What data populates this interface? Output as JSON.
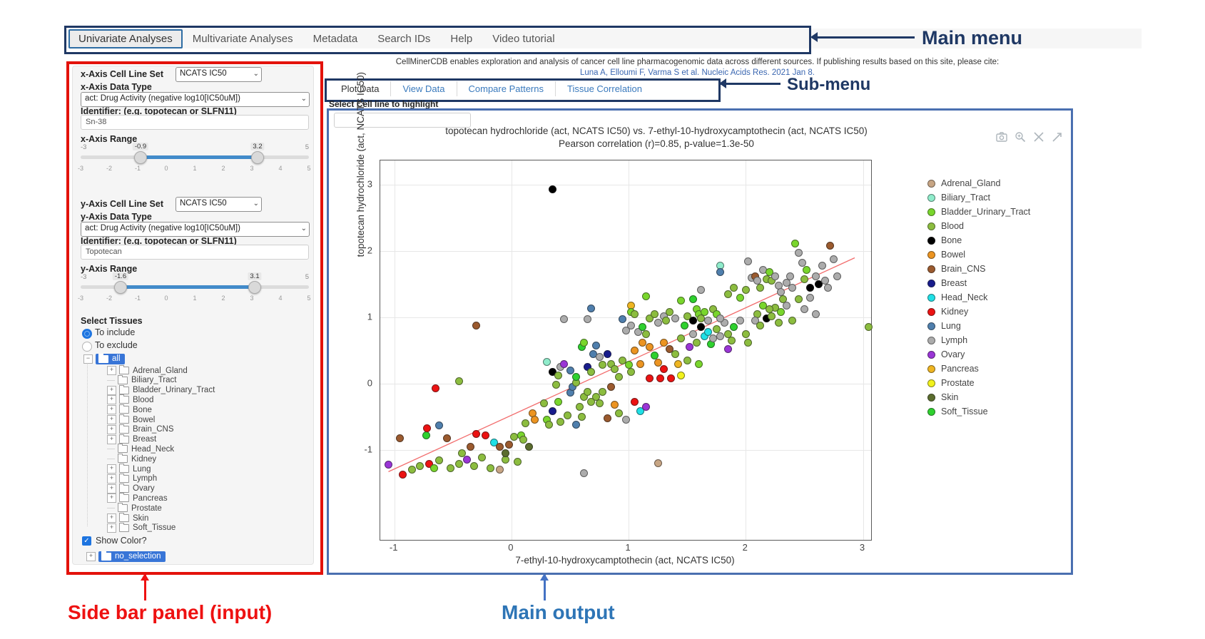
{
  "annotations": {
    "main_menu": "Main menu",
    "sub_menu": "Sub-menu",
    "sidebar": "Side bar panel (input)",
    "main_output": "Main output"
  },
  "main_menu": {
    "items": [
      {
        "label": "Univariate Analyses",
        "active": true
      },
      {
        "label": "Multivariate Analyses",
        "active": false
      },
      {
        "label": "Metadata",
        "active": false
      },
      {
        "label": "Search IDs",
        "active": false
      },
      {
        "label": "Help",
        "active": false
      },
      {
        "label": "Video tutorial",
        "active": false
      }
    ]
  },
  "citation": {
    "line1": "CellMinerCDB enables exploration and analysis of cancer cell line pharmacogenomic data across different sources. If publishing results based on this site, please cite:",
    "line2": "Luna A, Elloumi F, Varma S et al. Nucleic Acids Res. 2021 Jan 8."
  },
  "sub_menu": {
    "items": [
      {
        "label": "Plot Data",
        "active": true
      },
      {
        "label": "View Data",
        "active": false
      },
      {
        "label": "Compare Patterns",
        "active": false
      },
      {
        "label": "Tissue Correlation",
        "active": false
      }
    ]
  },
  "highlight": {
    "label": "Select Cell line to highlight",
    "value": "",
    "placeholder": ""
  },
  "sidebar": {
    "x_cell_line_set_label": "x-Axis Cell Line Set",
    "x_cell_line_set_value": "NCATS IC50",
    "x_data_type_label": "x-Axis Data Type",
    "x_data_type_value": "act: Drug Activity (negative log10[IC50uM])",
    "x_identifier_label": "Identifier: (e.g. topotecan or SLFN11)",
    "x_identifier_value": "Sn-38",
    "x_range": {
      "label": "x-Axis Range",
      "min": -3,
      "max": 5,
      "from": -0.9,
      "to": 3.2,
      "scale": [
        -3,
        -2,
        -1,
        0,
        1,
        2,
        3,
        4,
        5
      ]
    },
    "y_cell_line_set_label": "y-Axis Cell Line Set",
    "y_cell_line_set_value": "NCATS IC50",
    "y_data_type_label": "y-Axis Data Type",
    "y_data_type_value": "act: Drug Activity (negative log10[IC50uM])",
    "y_identifier_label": "Identifier: (e.g. topotecan or SLFN11)",
    "y_identifier_value": "Topotecan",
    "y_range": {
      "label": "y-Axis Range",
      "min": -3,
      "max": 5,
      "from": -1.6,
      "to": 3.1,
      "scale": [
        -3,
        -2,
        -1,
        0,
        1,
        2,
        3,
        4,
        5
      ]
    },
    "select_tissues_label": "Select Tissues",
    "include_option": "To include",
    "exclude_option": "To exclude",
    "include_selected": true,
    "tissue_tree": {
      "root": "all",
      "items": [
        {
          "label": "Adrenal_Gland",
          "expandable": true
        },
        {
          "label": "Biliary_Tract",
          "expandable": false
        },
        {
          "label": "Bladder_Urinary_Tract",
          "expandable": true
        },
        {
          "label": "Blood",
          "expandable": true
        },
        {
          "label": "Bone",
          "expandable": true
        },
        {
          "label": "Bowel",
          "expandable": true
        },
        {
          "label": "Brain_CNS",
          "expandable": true
        },
        {
          "label": "Breast",
          "expandable": true
        },
        {
          "label": "Head_Neck",
          "expandable": false
        },
        {
          "label": "Kidney",
          "expandable": false
        },
        {
          "label": "Lung",
          "expandable": true
        },
        {
          "label": "Lymph",
          "expandable": true
        },
        {
          "label": "Ovary",
          "expandable": true
        },
        {
          "label": "Pancreas",
          "expandable": true
        },
        {
          "label": "Prostate",
          "expandable": false
        },
        {
          "label": "Skin",
          "expandable": true
        },
        {
          "label": "Soft_Tissue",
          "expandable": true
        }
      ]
    },
    "show_color_label": "Show Color?",
    "show_color_checked": true,
    "no_selection_label": "no_selection"
  },
  "modebar_icons": [
    "camera-icon",
    "zoom-icon",
    "pan-icon",
    "autoscale-icon"
  ],
  "chart_data": {
    "type": "scatter",
    "title": "topotecan hydrochloride (act, NCATS IC50) vs. 7-ethyl-10-hydroxycamptothecin (act, NCATS IC50)",
    "subtitle": "Pearson correlation (r)=0.85, p-value=1.3e-50",
    "pearson_r": 0.85,
    "p_value": "1.3e-50",
    "xlabel": "7-ethyl-10-hydroxycamptothecin (act, NCATS IC50)",
    "ylabel": "topotecan hydrochloride (act, NCATS IC50)",
    "xlim": [
      -1.12,
      3.07
    ],
    "ylim": [
      -2.36,
      3.37
    ],
    "xticks": [
      -1,
      0,
      1,
      2,
      3
    ],
    "yticks": [
      -1,
      0,
      1,
      2,
      3
    ],
    "grid": true,
    "legend_position": "right",
    "regression_line": {
      "color": "#f26d6d",
      "x1": -1.05,
      "y1": -1.33,
      "x2": 2.93,
      "y2": 1.9
    },
    "legend": [
      {
        "label": "Adrenal_Gland",
        "color": "#C7A584"
      },
      {
        "label": "Biliary_Tract",
        "color": "#8FECCB"
      },
      {
        "label": "Bladder_Urinary_Tract",
        "color": "#79D62C"
      },
      {
        "label": "Blood",
        "color": "#8CBD3F"
      },
      {
        "label": "Bone",
        "color": "#000000"
      },
      {
        "label": "Bowel",
        "color": "#EC9421"
      },
      {
        "label": "Brain_CNS",
        "color": "#9B5A2E"
      },
      {
        "label": "Breast",
        "color": "#181C8C"
      },
      {
        "label": "Head_Neck",
        "color": "#1FE0E6"
      },
      {
        "label": "Kidney",
        "color": "#EC1212"
      },
      {
        "label": "Lung",
        "color": "#4F7FAD"
      },
      {
        "label": "Lymph",
        "color": "#ACACAC"
      },
      {
        "label": "Ovary",
        "color": "#9A35D6"
      },
      {
        "label": "Pancreas",
        "color": "#EFB521"
      },
      {
        "label": "Prostate",
        "color": "#F2F21C"
      },
      {
        "label": "Skin",
        "color": "#5B6D2E"
      },
      {
        "label": "Soft_Tissue",
        "color": "#2ED12E"
      }
    ],
    "points": [
      [
        -1.05,
        -1.22,
        12
      ],
      [
        -0.93,
        -1.37,
        9
      ],
      [
        -0.85,
        -1.3,
        3
      ],
      [
        -0.78,
        -1.24,
        3
      ],
      [
        -0.7,
        -1.21,
        9
      ],
      [
        -0.66,
        -1.28,
        2
      ],
      [
        -0.62,
        -1.16,
        3
      ],
      [
        -0.52,
        -1.28,
        3
      ],
      [
        -0.45,
        -1.21,
        3
      ],
      [
        -0.38,
        -1.15,
        12
      ],
      [
        -0.32,
        -1.24,
        3
      ],
      [
        -0.25,
        -1.12,
        3
      ],
      [
        -0.18,
        -1.28,
        3
      ],
      [
        -0.1,
        -1.3,
        0
      ],
      [
        -0.05,
        -1.15,
        3
      ],
      [
        0.05,
        -1.18,
        3
      ],
      [
        -0.95,
        -0.82,
        6
      ],
      [
        -0.73,
        -0.78,
        16
      ],
      [
        -0.72,
        -0.67,
        9
      ],
      [
        -0.62,
        -0.63,
        10
      ],
      [
        -0.55,
        -0.82,
        6
      ],
      [
        -0.42,
        -1.05,
        3
      ],
      [
        -0.35,
        -0.95,
        6
      ],
      [
        -0.3,
        -0.76,
        9
      ],
      [
        -0.22,
        -0.78,
        9
      ],
      [
        -0.15,
        -0.89,
        8
      ],
      [
        -0.1,
        -0.95,
        6
      ],
      [
        -0.05,
        -1.05,
        15
      ],
      [
        -0.02,
        -0.92,
        6
      ],
      [
        0.02,
        -0.8,
        3
      ],
      [
        0.08,
        -0.78,
        2
      ],
      [
        0.1,
        -0.85,
        3
      ],
      [
        0.15,
        -0.95,
        15
      ],
      [
        -0.65,
        -0.07,
        9
      ],
      [
        -0.45,
        0.04,
        3
      ],
      [
        -0.3,
        0.88,
        6
      ],
      [
        0.12,
        -0.6,
        3
      ],
      [
        0.18,
        -0.45,
        5
      ],
      [
        0.2,
        -0.55,
        5
      ],
      [
        0.28,
        -0.3,
        3
      ],
      [
        0.3,
        -0.55,
        2
      ],
      [
        0.32,
        -0.62,
        3
      ],
      [
        0.35,
        -0.42,
        7
      ],
      [
        0.38,
        -0.02,
        3
      ],
      [
        0.4,
        -0.28,
        2
      ],
      [
        0.42,
        -0.58,
        3
      ],
      [
        0.48,
        -0.48,
        3
      ],
      [
        0.5,
        -0.14,
        10
      ],
      [
        0.52,
        -0.05,
        10
      ],
      [
        0.55,
        -0.62,
        10
      ],
      [
        0.55,
        0.02,
        3
      ],
      [
        0.58,
        -0.35,
        3
      ],
      [
        0.6,
        -0.5,
        3
      ],
      [
        0.62,
        -0.2,
        3
      ],
      [
        0.65,
        -0.12,
        3
      ],
      [
        0.68,
        -0.28,
        3
      ],
      [
        0.72,
        -0.2,
        3
      ],
      [
        0.75,
        -0.3,
        3
      ],
      [
        0.78,
        -0.12,
        3
      ],
      [
        0.82,
        -0.52,
        6
      ],
      [
        0.85,
        -0.05,
        6
      ],
      [
        0.88,
        -0.32,
        5
      ],
      [
        0.92,
        -0.45,
        3
      ],
      [
        0.98,
        -0.55,
        11
      ],
      [
        1.05,
        -0.28,
        9
      ],
      [
        1.1,
        -0.42,
        8
      ],
      [
        1.15,
        -0.35,
        12
      ],
      [
        0.3,
        0.33,
        1
      ],
      [
        0.35,
        0.18,
        4
      ],
      [
        0.4,
        0.12,
        3
      ],
      [
        0.42,
        0.25,
        11
      ],
      [
        0.45,
        0.3,
        12
      ],
      [
        0.5,
        0.2,
        10
      ],
      [
        0.55,
        0.1,
        16
      ],
      [
        0.6,
        0.55,
        16
      ],
      [
        0.62,
        0.62,
        2
      ],
      [
        0.65,
        0.25,
        7
      ],
      [
        0.68,
        0.18,
        3
      ],
      [
        0.7,
        0.45,
        10
      ],
      [
        0.75,
        0.4,
        11
      ],
      [
        0.78,
        0.28,
        3
      ],
      [
        0.82,
        0.45,
        7
      ],
      [
        0.85,
        0.3,
        3
      ],
      [
        0.88,
        0.22,
        3
      ],
      [
        0.92,
        0.1,
        3
      ],
      [
        0.95,
        0.35,
        3
      ],
      [
        1.0,
        0.28,
        2
      ],
      [
        1.02,
        0.18,
        3
      ],
      [
        1.05,
        0.5,
        5
      ],
      [
        1.1,
        0.3,
        5
      ],
      [
        1.18,
        0.08,
        9
      ],
      [
        1.27,
        0.08,
        9
      ],
      [
        1.36,
        0.08,
        9
      ],
      [
        1.45,
        0.12,
        14
      ],
      [
        1.3,
        0.22,
        9
      ],
      [
        1.42,
        0.3,
        13
      ],
      [
        1.12,
        0.62,
        5
      ],
      [
        1.18,
        0.55,
        5
      ],
      [
        1.22,
        0.42,
        16
      ],
      [
        1.25,
        0.32,
        5
      ],
      [
        1.3,
        0.62,
        5
      ],
      [
        1.35,
        0.52,
        6
      ],
      [
        1.4,
        0.45,
        3
      ],
      [
        1.45,
        0.68,
        3
      ],
      [
        1.5,
        0.35,
        3
      ],
      [
        1.52,
        0.55,
        12
      ],
      [
        1.85,
        0.52,
        12
      ],
      [
        1.55,
        0.75,
        11
      ],
      [
        1.58,
        0.62,
        3
      ],
      [
        1.6,
        0.3,
        2
      ],
      [
        1.62,
        0.85,
        4
      ],
      [
        1.65,
        0.72,
        8
      ],
      [
        1.68,
        0.78,
        8
      ],
      [
        1.7,
        0.6,
        16
      ],
      [
        1.72,
        0.68,
        11
      ],
      [
        1.75,
        0.82,
        3
      ],
      [
        1.78,
        0.72,
        11
      ],
      [
        1.82,
        0.92,
        11
      ],
      [
        1.85,
        0.75,
        3
      ],
      [
        1.88,
        0.65,
        3
      ],
      [
        1.9,
        0.85,
        16
      ],
      [
        1.95,
        0.95,
        11
      ],
      [
        2.0,
        0.75,
        3
      ],
      [
        2.02,
        0.62,
        3
      ],
      [
        0.68,
        1.13,
        10
      ],
      [
        0.65,
        0.97,
        11
      ],
      [
        0.45,
        0.97,
        11
      ],
      [
        0.95,
        0.97,
        10
      ],
      [
        1.02,
        1.18,
        13
      ],
      [
        1.02,
        1.08,
        2
      ],
      [
        1.05,
        1.05,
        3
      ],
      [
        1.15,
        1.32,
        2
      ],
      [
        1.18,
        0.98,
        3
      ],
      [
        1.22,
        1.05,
        3
      ],
      [
        1.25,
        0.92,
        11
      ],
      [
        1.3,
        1.02,
        11
      ],
      [
        1.32,
        0.95,
        3
      ],
      [
        1.35,
        1.08,
        3
      ],
      [
        1.4,
        0.98,
        11
      ],
      [
        1.45,
        1.25,
        2
      ],
      [
        1.48,
        0.88,
        16
      ],
      [
        1.5,
        1.02,
        3
      ],
      [
        1.55,
        0.95,
        4
      ],
      [
        1.58,
        1.12,
        2
      ],
      [
        1.6,
        1.05,
        2
      ],
      [
        1.62,
        0.98,
        3
      ],
      [
        1.65,
        1.08,
        2
      ],
      [
        1.68,
        0.95,
        11
      ],
      [
        1.72,
        1.12,
        3
      ],
      [
        1.75,
        1.05,
        2
      ],
      [
        1.78,
        0.98,
        11
      ],
      [
        1.78,
        1.78,
        1
      ],
      [
        1.78,
        1.68,
        10
      ],
      [
        1.62,
        1.42,
        11
      ],
      [
        1.55,
        1.28,
        16
      ],
      [
        1.85,
        1.35,
        3
      ],
      [
        1.9,
        1.45,
        3
      ],
      [
        1.95,
        1.3,
        2
      ],
      [
        2.0,
        1.42,
        3
      ],
      [
        2.02,
        1.85,
        11
      ],
      [
        2.05,
        1.6,
        11
      ],
      [
        2.08,
        1.62,
        6
      ],
      [
        2.1,
        1.55,
        11
      ],
      [
        2.12,
        1.45,
        3
      ],
      [
        2.15,
        1.72,
        11
      ],
      [
        2.18,
        1.58,
        3
      ],
      [
        2.2,
        1.68,
        2
      ],
      [
        2.22,
        1.55,
        3
      ],
      [
        2.25,
        1.62,
        11
      ],
      [
        2.28,
        1.48,
        11
      ],
      [
        2.3,
        1.38,
        11
      ],
      [
        2.32,
        1.28,
        3
      ],
      [
        2.35,
        1.52,
        11
      ],
      [
        2.38,
        1.62,
        11
      ],
      [
        2.4,
        1.45,
        11
      ],
      [
        2.42,
        2.12,
        2
      ],
      [
        2.45,
        1.97,
        11
      ],
      [
        2.48,
        1.82,
        11
      ],
      [
        2.5,
        1.58,
        3
      ],
      [
        2.52,
        1.72,
        2
      ],
      [
        2.55,
        1.45,
        4
      ],
      [
        2.62,
        1.5,
        4
      ],
      [
        2.6,
        1.62,
        11
      ],
      [
        2.65,
        1.78,
        11
      ],
      [
        2.68,
        1.55,
        11
      ],
      [
        2.7,
        1.45,
        11
      ],
      [
        2.72,
        2.08,
        6
      ],
      [
        2.75,
        1.88,
        11
      ],
      [
        2.78,
        1.62,
        11
      ],
      [
        2.55,
        1.3,
        11
      ],
      [
        2.45,
        1.28,
        3
      ],
      [
        2.35,
        1.18,
        11
      ],
      [
        2.3,
        1.08,
        2
      ],
      [
        2.25,
        1.15,
        3
      ],
      [
        2.2,
        1.12,
        3
      ],
      [
        2.15,
        1.18,
        2
      ],
      [
        2.1,
        1.05,
        3
      ],
      [
        2.08,
        0.95,
        11
      ],
      [
        2.12,
        0.88,
        3
      ],
      [
        2.18,
        0.98,
        4
      ],
      [
        2.22,
        1.02,
        3
      ],
      [
        2.28,
        0.92,
        3
      ],
      [
        2.4,
        0.95,
        3
      ],
      [
        2.5,
        1.12,
        11
      ],
      [
        2.6,
        1.05,
        11
      ],
      [
        3.05,
        0.85,
        3
      ],
      [
        1.25,
        -1.2,
        0
      ],
      [
        0.62,
        -1.35,
        11
      ],
      [
        0.35,
        2.93,
        4
      ],
      [
        1.02,
        0.88,
        11
      ],
      [
        0.98,
        0.8,
        11
      ],
      [
        1.08,
        0.78,
        11
      ],
      [
        1.12,
        0.85,
        16
      ],
      [
        1.15,
        0.75,
        3
      ],
      [
        0.72,
        0.58,
        10
      ]
    ]
  }
}
